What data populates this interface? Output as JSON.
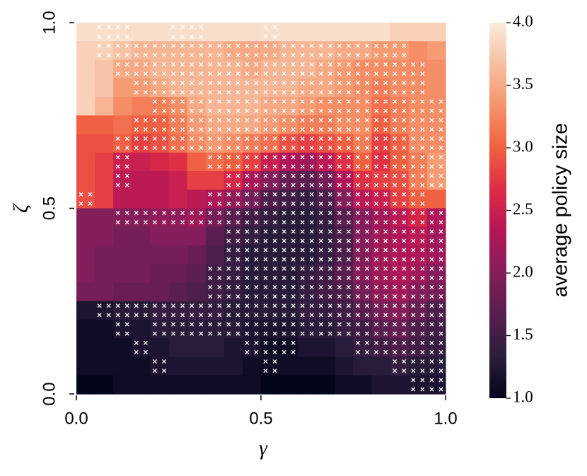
{
  "chart_data": {
    "type": "heatmap",
    "xlabel": "γ",
    "ylabel": "ζ",
    "xlim": [
      0,
      1
    ],
    "ylim": [
      0,
      1
    ],
    "xticks": [
      {
        "value": 0,
        "label": "0.0"
      },
      0.5,
      {
        "value": 1,
        "label": "1.0"
      }
    ],
    "yticks": [
      {
        "value": 0,
        "label": "0.0"
      },
      0.5,
      {
        "value": 1,
        "label": "1.0"
      }
    ],
    "values": [
      [
        3.9,
        3.9,
        3.9,
        3.9,
        3.9,
        3.9,
        3.9,
        3.9,
        3.9,
        3.9,
        3.9,
        3.9,
        3.9,
        3.9,
        3.9,
        3.9,
        3.9,
        3.8,
        3.8,
        3.8
      ],
      [
        3.8,
        3.8,
        3.7,
        3.6,
        3.6,
        3.6,
        3.6,
        3.6,
        3.5,
        3.5,
        3.5,
        3.6,
        3.6,
        3.6,
        3.5,
        3.5,
        3.4,
        3.4,
        3.3,
        3.4
      ],
      [
        3.8,
        3.7,
        3.5,
        3.5,
        3.6,
        3.6,
        3.6,
        3.6,
        3.6,
        3.5,
        3.6,
        3.6,
        3.6,
        3.5,
        3.4,
        3.3,
        3.3,
        3.3,
        3.3,
        3.3
      ],
      [
        3.8,
        3.7,
        3.4,
        3.4,
        3.5,
        3.6,
        3.6,
        3.6,
        3.6,
        3.6,
        3.6,
        3.6,
        3.5,
        3.5,
        3.4,
        3.3,
        3.2,
        3.3,
        3.3,
        3.3
      ],
      [
        3.8,
        3.6,
        3.3,
        3.2,
        3.2,
        3.3,
        3.5,
        3.6,
        3.6,
        3.6,
        3.5,
        3.5,
        3.4,
        3.3,
        3.3,
        3.3,
        3.1,
        3.2,
        3.3,
        3.3
      ],
      [
        3.0,
        3.0,
        3.1,
        3.0,
        3.0,
        3.2,
        3.4,
        3.5,
        3.5,
        3.5,
        3.4,
        3.3,
        3.2,
        3.2,
        3.3,
        3.3,
        3.0,
        3.2,
        3.3,
        3.3
      ],
      [
        2.9,
        2.9,
        3.0,
        2.8,
        2.9,
        3.1,
        3.3,
        3.4,
        3.3,
        3.2,
        3.1,
        2.9,
        2.8,
        2.9,
        3.0,
        3.2,
        2.8,
        3.0,
        3.3,
        3.3
      ],
      [
        2.9,
        2.8,
        2.5,
        2.5,
        2.6,
        2.7,
        3.0,
        3.1,
        3.0,
        2.8,
        2.5,
        2.3,
        2.2,
        2.4,
        2.7,
        3.0,
        2.7,
        3.0,
        3.2,
        3.4
      ],
      [
        2.9,
        2.8,
        2.4,
        2.4,
        2.4,
        2.5,
        2.8,
        2.8,
        2.6,
        2.3,
        2.0,
        1.8,
        1.7,
        1.9,
        2.3,
        2.7,
        2.8,
        2.9,
        3.2,
        3.4
      ],
      [
        2.9,
        2.8,
        2.4,
        2.4,
        2.4,
        2.5,
        2.4,
        2.3,
        2.1,
        1.9,
        1.6,
        1.5,
        1.4,
        1.6,
        2.0,
        2.4,
        2.5,
        2.8,
        3.0,
        3.0
      ],
      [
        2.0,
        2.0,
        2.0,
        2.0,
        2.1,
        2.1,
        2.2,
        1.9,
        1.7,
        1.5,
        1.4,
        1.3,
        1.3,
        1.4,
        1.7,
        2.0,
        2.2,
        2.4,
        2.6,
        2.3
      ],
      [
        2.0,
        2.0,
        1.9,
        1.9,
        2.0,
        2.0,
        2.0,
        1.7,
        1.5,
        1.4,
        1.3,
        1.3,
        1.3,
        1.4,
        1.6,
        2.0,
        2.2,
        2.3,
        2.4,
        2.2
      ],
      [
        2.0,
        1.9,
        1.9,
        1.9,
        1.9,
        1.9,
        1.8,
        1.6,
        1.4,
        1.3,
        1.3,
        1.3,
        1.3,
        1.4,
        1.6,
        2.0,
        2.2,
        2.3,
        2.3,
        2.2
      ],
      [
        2.0,
        1.9,
        1.9,
        1.9,
        1.8,
        1.8,
        1.7,
        1.5,
        1.4,
        1.3,
        1.3,
        1.3,
        1.4,
        1.5,
        1.7,
        2.0,
        2.2,
        2.3,
        2.2,
        2.0
      ],
      [
        1.9,
        1.9,
        1.8,
        1.8,
        1.8,
        1.7,
        1.6,
        1.5,
        1.4,
        1.3,
        1.3,
        1.3,
        1.4,
        1.5,
        1.6,
        1.9,
        2.1,
        2.2,
        2.0,
        1.9
      ],
      [
        1.2,
        1.2,
        1.3,
        1.3,
        1.4,
        1.4,
        1.4,
        1.4,
        1.3,
        1.3,
        1.3,
        1.3,
        1.4,
        1.4,
        1.5,
        1.7,
        1.9,
        2.0,
        1.8,
        1.6
      ],
      [
        1.1,
        1.1,
        1.2,
        1.2,
        1.3,
        1.3,
        1.3,
        1.3,
        1.3,
        1.2,
        1.2,
        1.2,
        1.3,
        1.3,
        1.4,
        1.5,
        1.7,
        1.8,
        1.6,
        1.5
      ],
      [
        1.1,
        1.1,
        1.1,
        1.2,
        1.2,
        1.3,
        1.3,
        1.3,
        1.2,
        1.2,
        1.1,
        1.1,
        1.2,
        1.2,
        1.3,
        1.4,
        1.5,
        1.6,
        1.5,
        1.4
      ],
      [
        1.1,
        1.1,
        1.1,
        1.1,
        1.2,
        1.2,
        1.2,
        1.2,
        1.2,
        1.1,
        1.1,
        1.1,
        1.1,
        1.1,
        1.2,
        1.3,
        1.3,
        1.4,
        1.3,
        1.3
      ],
      [
        1.0,
        1.0,
        1.1,
        1.1,
        1.1,
        1.1,
        1.1,
        1.1,
        1.1,
        1.1,
        1.0,
        1.0,
        1.0,
        1.0,
        1.1,
        1.1,
        1.2,
        1.2,
        1.2,
        1.2
      ]
    ],
    "marked": [
      [
        0,
        1,
        1,
        0,
        0,
        1,
        1,
        0,
        0,
        0,
        1,
        0,
        0,
        0,
        0,
        0,
        0,
        0,
        0,
        0
      ],
      [
        0,
        1,
        1,
        1,
        1,
        1,
        1,
        1,
        1,
        1,
        1,
        1,
        1,
        1,
        1,
        1,
        1,
        1,
        0,
        0
      ],
      [
        0,
        0,
        1,
        1,
        1,
        1,
        1,
        1,
        1,
        1,
        1,
        1,
        1,
        1,
        1,
        1,
        1,
        1,
        1,
        0
      ],
      [
        0,
        0,
        0,
        1,
        1,
        1,
        1,
        1,
        1,
        1,
        1,
        1,
        1,
        1,
        1,
        1,
        1,
        1,
        1,
        0
      ],
      [
        0,
        0,
        0,
        0,
        1,
        1,
        1,
        1,
        1,
        1,
        1,
        1,
        1,
        1,
        1,
        1,
        1,
        1,
        1,
        1
      ],
      [
        0,
        0,
        0,
        1,
        1,
        1,
        1,
        1,
        1,
        1,
        1,
        1,
        1,
        1,
        1,
        1,
        1,
        1,
        1,
        1
      ],
      [
        0,
        0,
        1,
        1,
        1,
        1,
        1,
        1,
        1,
        1,
        1,
        1,
        1,
        1,
        1,
        1,
        1,
        1,
        1,
        1
      ],
      [
        0,
        0,
        1,
        0,
        0,
        0,
        0,
        1,
        1,
        1,
        1,
        1,
        1,
        1,
        1,
        1,
        1,
        1,
        1,
        1
      ],
      [
        0,
        0,
        1,
        0,
        0,
        0,
        0,
        0,
        1,
        1,
        1,
        1,
        1,
        1,
        1,
        1,
        1,
        1,
        1,
        1
      ],
      [
        1,
        0,
        0,
        0,
        0,
        0,
        0,
        1,
        1,
        1,
        1,
        1,
        1,
        1,
        1,
        1,
        1,
        1,
        1,
        0
      ],
      [
        0,
        0,
        1,
        1,
        1,
        1,
        1,
        1,
        1,
        1,
        1,
        1,
        1,
        1,
        1,
        1,
        1,
        1,
        1,
        1
      ],
      [
        0,
        0,
        0,
        0,
        0,
        0,
        0,
        0,
        1,
        1,
        1,
        1,
        1,
        1,
        1,
        1,
        1,
        1,
        1,
        1
      ],
      [
        0,
        0,
        0,
        0,
        0,
        0,
        0,
        0,
        1,
        1,
        1,
        1,
        1,
        1,
        1,
        1,
        1,
        1,
        1,
        1
      ],
      [
        0,
        0,
        0,
        0,
        0,
        0,
        0,
        1,
        1,
        1,
        1,
        1,
        1,
        1,
        1,
        1,
        1,
        1,
        1,
        1
      ],
      [
        0,
        0,
        0,
        0,
        0,
        0,
        0,
        1,
        1,
        1,
        1,
        1,
        1,
        1,
        1,
        1,
        1,
        1,
        1,
        1
      ],
      [
        0,
        1,
        1,
        1,
        1,
        1,
        1,
        1,
        1,
        1,
        1,
        1,
        1,
        1,
        1,
        1,
        1,
        1,
        1,
        1
      ],
      [
        0,
        0,
        1,
        0,
        1,
        1,
        1,
        1,
        1,
        1,
        1,
        1,
        1,
        1,
        1,
        1,
        1,
        1,
        1,
        1
      ],
      [
        0,
        0,
        0,
        1,
        0,
        0,
        0,
        0,
        0,
        1,
        1,
        1,
        0,
        0,
        0,
        1,
        1,
        1,
        1,
        1
      ],
      [
        0,
        0,
        0,
        0,
        1,
        0,
        0,
        0,
        0,
        0,
        1,
        0,
        0,
        0,
        0,
        0,
        0,
        1,
        1,
        1
      ],
      [
        0,
        0,
        0,
        0,
        0,
        0,
        0,
        0,
        0,
        0,
        0,
        0,
        0,
        0,
        0,
        0,
        0,
        0,
        1,
        1
      ]
    ],
    "marker_color": "#ffffff",
    "colorbar": {
      "label": "average policy size",
      "lim": [
        1,
        4
      ],
      "ticks": [
        {
          "value": 1,
          "label": "1.0"
        },
        1.5,
        {
          "value": 2,
          "label": "2.0"
        },
        2.5,
        {
          "value": 3,
          "label": "3.0"
        },
        3.5,
        {
          "value": 4,
          "label": "4.0"
        }
      ],
      "colors": [
        "#03051a",
        "#2c1e3e",
        "#571e4f",
        "#841e5a",
        "#b41658",
        "#dd2c45",
        "#f06043",
        "#f5936a",
        "#f6bfa0",
        "#faebdd"
      ]
    }
  }
}
